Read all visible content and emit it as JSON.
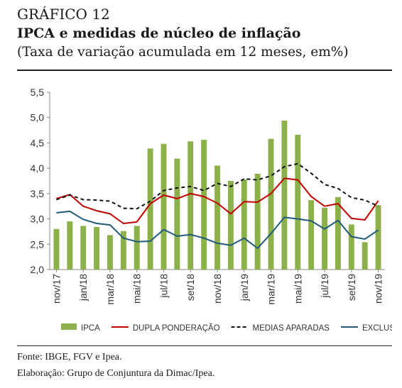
{
  "header": {
    "figure_label": "GRÁFICO 12",
    "title": "IPCA e medidas de núcleo de inflação",
    "subtitle": "(Taxa de variação acumulada em 12 meses, em%)"
  },
  "footer": {
    "source": "Fonte: IBGE, FGV e Ipea.",
    "credit": "Elaboração: Grupo de Conjuntura da Dimac/Ipea."
  },
  "chart_data": {
    "type": "bar",
    "categories": [
      "nov/17",
      "dez/17",
      "jan/18",
      "fev/18",
      "mar/18",
      "abr/18",
      "mai/18",
      "jun/18",
      "jul/18",
      "ago/18",
      "set/18",
      "out/18",
      "nov/18",
      "dez/18",
      "jan/19",
      "fev/19",
      "mar/19",
      "abr/19",
      "mai/19",
      "jun/19",
      "jul/19",
      "ago/19",
      "set/19",
      "out/19",
      "nov/19"
    ],
    "tick_labels": [
      "nov/17",
      "jan/18",
      "mar/18",
      "mai/18",
      "jul/18",
      "set/18",
      "nov/18",
      "jan/19",
      "mar/19",
      "mai/19",
      "jul/19",
      "set/19",
      "nov/19"
    ],
    "ylim": [
      2.0,
      5.5
    ],
    "yticks": [
      "2,0",
      "2,5",
      "3,0",
      "3,5",
      "4,0",
      "4,5",
      "5,0",
      "5,5"
    ],
    "grid": false,
    "legend_position": "bottom",
    "series": [
      {
        "name": "IPCA",
        "kind": "bar",
        "color": "#8db14a",
        "values": [
          2.8,
          2.95,
          2.86,
          2.84,
          2.68,
          2.76,
          2.86,
          4.39,
          4.48,
          4.19,
          4.53,
          4.56,
          4.05,
          3.75,
          3.78,
          3.89,
          4.58,
          4.94,
          4.66,
          3.37,
          3.22,
          3.43,
          2.89,
          2.54,
          3.27
        ]
      },
      {
        "name": "DUPLA PONDERAÇÃO",
        "kind": "line",
        "color": "#c00000",
        "dash": "solid",
        "values": [
          3.4,
          3.48,
          3.25,
          3.16,
          3.1,
          2.91,
          2.94,
          3.3,
          3.47,
          3.4,
          3.5,
          3.44,
          3.31,
          3.1,
          3.34,
          3.33,
          3.5,
          3.8,
          3.77,
          3.44,
          3.25,
          3.3,
          3.01,
          2.98,
          3.36
        ]
      },
      {
        "name": "MEDIAS APARADAS",
        "kind": "line",
        "color": "#111111",
        "dash": "dashed",
        "values": [
          3.38,
          3.47,
          3.38,
          3.37,
          3.35,
          3.21,
          3.2,
          3.35,
          3.56,
          3.61,
          3.64,
          3.56,
          3.7,
          3.64,
          3.79,
          3.77,
          3.85,
          4.03,
          4.09,
          3.9,
          3.68,
          3.6,
          3.42,
          3.37,
          3.25
        ]
      },
      {
        "name": "EXCLUSÃO",
        "kind": "line",
        "color": "#1f5a7a",
        "dash": "solid",
        "values": [
          3.12,
          3.15,
          2.99,
          2.91,
          2.88,
          2.62,
          2.55,
          2.56,
          2.79,
          2.66,
          2.69,
          2.62,
          2.52,
          2.48,
          2.62,
          2.42,
          2.71,
          3.03,
          3.0,
          2.96,
          2.8,
          2.97,
          2.65,
          2.6,
          2.78
        ]
      }
    ]
  }
}
